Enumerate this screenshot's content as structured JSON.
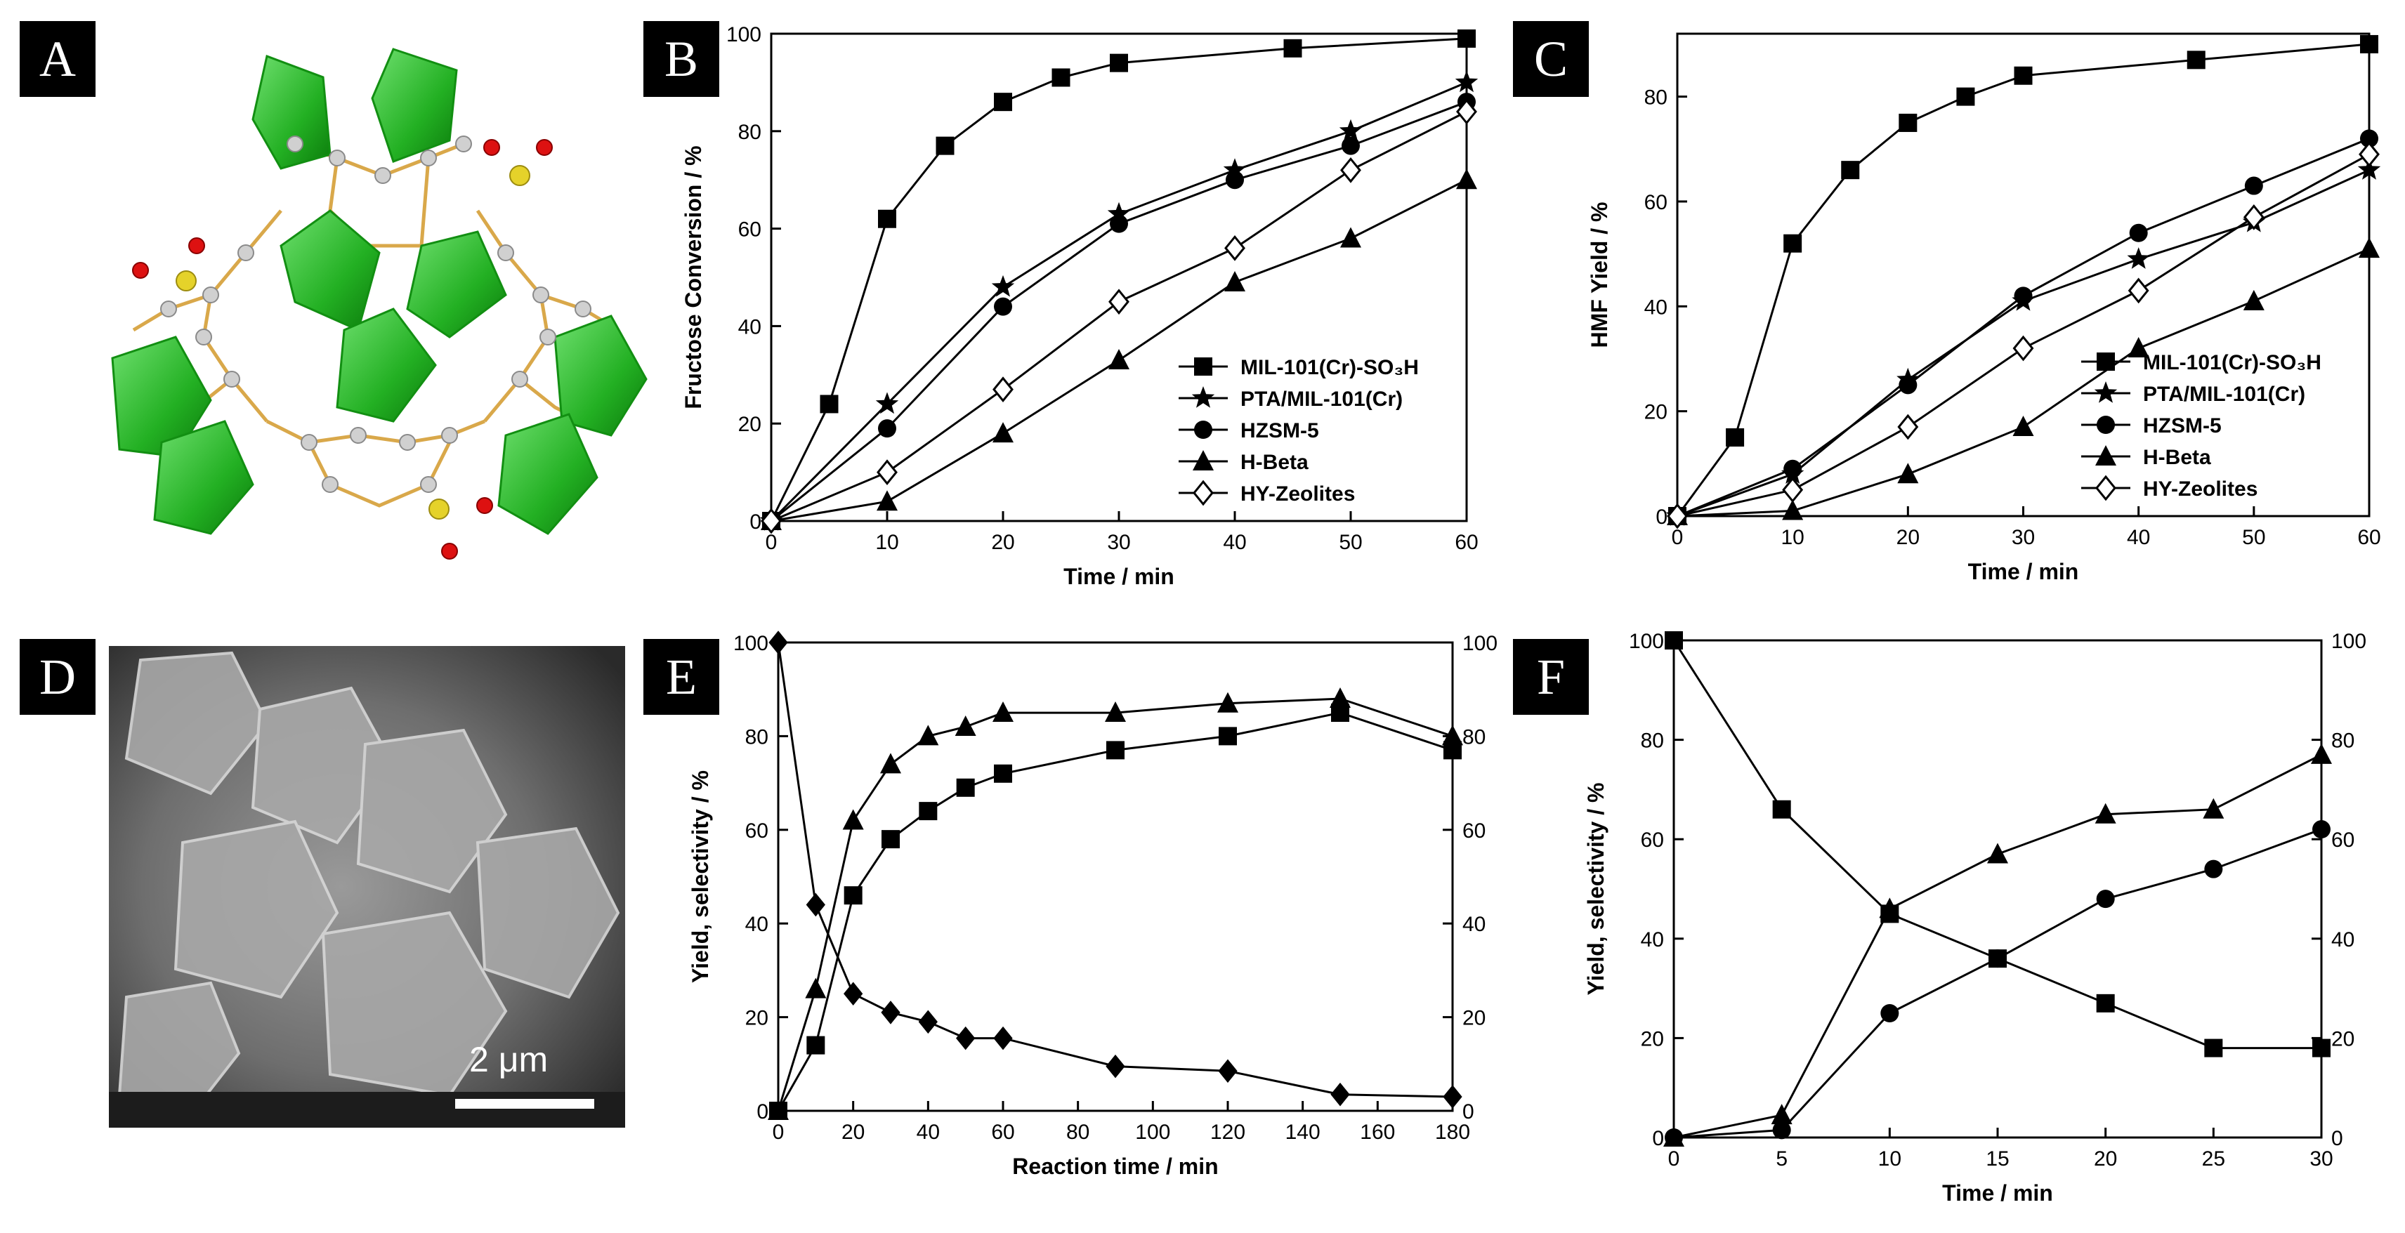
{
  "panels": [
    "A",
    "B",
    "C",
    "D",
    "E",
    "F"
  ],
  "sem": {
    "scale_label": "2 μm"
  },
  "chart_data": [
    {
      "id": "B",
      "type": "line",
      "xlabel": "Time / min",
      "ylabel": "Fructose Conversion / %",
      "xlim": [
        0,
        60
      ],
      "ylim": [
        0,
        100
      ],
      "xticks": [
        0,
        10,
        20,
        30,
        40,
        50,
        60
      ],
      "yticks": [
        0,
        20,
        40,
        60,
        80,
        100
      ],
      "right_axis": false,
      "legend_position": "bottom-right",
      "series": [
        {
          "name": "MIL-101(Cr)-SO3H",
          "marker": "square",
          "x": [
            0,
            5,
            10,
            15,
            20,
            25,
            30,
            45,
            60
          ],
          "y": [
            0,
            24,
            62,
            77,
            86,
            91,
            94,
            97,
            99
          ]
        },
        {
          "name": "PTA/MIL-101(Cr)",
          "marker": "star",
          "x": [
            0,
            10,
            20,
            30,
            40,
            50,
            60
          ],
          "y": [
            0,
            24,
            48,
            63,
            72,
            80,
            90
          ]
        },
        {
          "name": "HZSM-5",
          "marker": "circle",
          "x": [
            0,
            10,
            20,
            30,
            40,
            50,
            60
          ],
          "y": [
            0,
            19,
            44,
            61,
            70,
            77,
            86
          ]
        },
        {
          "name": "H-Beta",
          "marker": "triangle",
          "x": [
            0,
            10,
            20,
            30,
            40,
            50,
            60
          ],
          "y": [
            0,
            4,
            18,
            33,
            49,
            58,
            70
          ]
        },
        {
          "name": "HY-Zeolites",
          "marker": "diamond-open",
          "x": [
            0,
            10,
            20,
            30,
            40,
            50,
            60
          ],
          "y": [
            0,
            10,
            27,
            45,
            56,
            72,
            84
          ]
        }
      ]
    },
    {
      "id": "C",
      "type": "line",
      "xlabel": "Time / min",
      "ylabel": "HMF Yield / %",
      "xlim": [
        0,
        60
      ],
      "ylim": [
        0,
        92
      ],
      "xticks": [
        0,
        10,
        20,
        30,
        40,
        50,
        60
      ],
      "yticks": [
        0,
        20,
        40,
        60,
        80
      ],
      "right_axis": false,
      "legend_position": "bottom-right",
      "series": [
        {
          "name": "MIL-101(Cr)-SO3H",
          "marker": "square",
          "x": [
            0,
            5,
            10,
            15,
            20,
            25,
            30,
            45,
            60
          ],
          "y": [
            0,
            15,
            52,
            66,
            75,
            80,
            84,
            87,
            90
          ]
        },
        {
          "name": "PTA/MIL-101(Cr)",
          "marker": "star",
          "x": [
            0,
            10,
            20,
            30,
            40,
            50,
            60
          ],
          "y": [
            0,
            8,
            26,
            41,
            49,
            56,
            66
          ]
        },
        {
          "name": "HZSM-5",
          "marker": "circle",
          "x": [
            0,
            10,
            20,
            30,
            40,
            50,
            60
          ],
          "y": [
            0,
            9,
            25,
            42,
            54,
            63,
            72
          ]
        },
        {
          "name": "H-Beta",
          "marker": "triangle",
          "x": [
            0,
            10,
            20,
            30,
            40,
            50,
            60
          ],
          "y": [
            0,
            1,
            8,
            17,
            32,
            41,
            51
          ]
        },
        {
          "name": "HY-Zeolites",
          "marker": "diamond-open",
          "x": [
            0,
            10,
            20,
            30,
            40,
            50,
            60
          ],
          "y": [
            0,
            5,
            17,
            32,
            43,
            57,
            69
          ]
        }
      ]
    },
    {
      "id": "E",
      "type": "line",
      "xlabel": "Reaction time / min",
      "ylabel": "Yield, selectivity / %",
      "xlim": [
        0,
        180
      ],
      "ylim": [
        0,
        100
      ],
      "xticks": [
        0,
        20,
        40,
        60,
        80,
        100,
        120,
        140,
        160,
        180
      ],
      "yticks": [
        0,
        20,
        40,
        60,
        80,
        100
      ],
      "right_axis": true,
      "legend_position": "none",
      "series": [
        {
          "name": "triangle series",
          "marker": "triangle",
          "x": [
            0,
            10,
            20,
            30,
            40,
            50,
            60,
            90,
            120,
            150,
            180
          ],
          "y": [
            0,
            26,
            62,
            74,
            80,
            82,
            85,
            85,
            87,
            88,
            80
          ]
        },
        {
          "name": "square series",
          "marker": "square",
          "x": [
            0,
            10,
            20,
            30,
            40,
            50,
            60,
            90,
            120,
            150,
            180
          ],
          "y": [
            0,
            14,
            46,
            58,
            64,
            69,
            72,
            77,
            80,
            85,
            77
          ]
        },
        {
          "name": "diamond series",
          "marker": "diamond",
          "x": [
            0,
            10,
            20,
            30,
            40,
            50,
            60,
            90,
            120,
            150,
            180
          ],
          "y": [
            100,
            44,
            25,
            21,
            19,
            15.5,
            15.5,
            9.5,
            8.5,
            3.5,
            3
          ]
        }
      ]
    },
    {
      "id": "F",
      "type": "line",
      "xlabel": "Time / min",
      "ylabel": "Yield, selectivity / %",
      "xlim": [
        0,
        30
      ],
      "ylim": [
        0,
        100
      ],
      "xticks": [
        0,
        5,
        10,
        15,
        20,
        25,
        30
      ],
      "yticks": [
        0,
        20,
        40,
        60,
        80,
        100
      ],
      "right_axis": true,
      "legend_position": "none",
      "series": [
        {
          "name": "square series",
          "marker": "square",
          "x": [
            0,
            5,
            10,
            15,
            20,
            25,
            30
          ],
          "y": [
            100,
            66,
            45,
            36,
            27,
            18,
            18
          ]
        },
        {
          "name": "triangle series",
          "marker": "triangle",
          "x": [
            0,
            5,
            10,
            15,
            20,
            25,
            30
          ],
          "y": [
            0,
            4.5,
            46,
            57,
            65,
            66,
            77
          ]
        },
        {
          "name": "circle series",
          "marker": "circle",
          "x": [
            0,
            5,
            10,
            15,
            20,
            25,
            30
          ],
          "y": [
            0,
            1.5,
            25,
            36,
            48,
            54,
            62
          ]
        }
      ]
    }
  ]
}
